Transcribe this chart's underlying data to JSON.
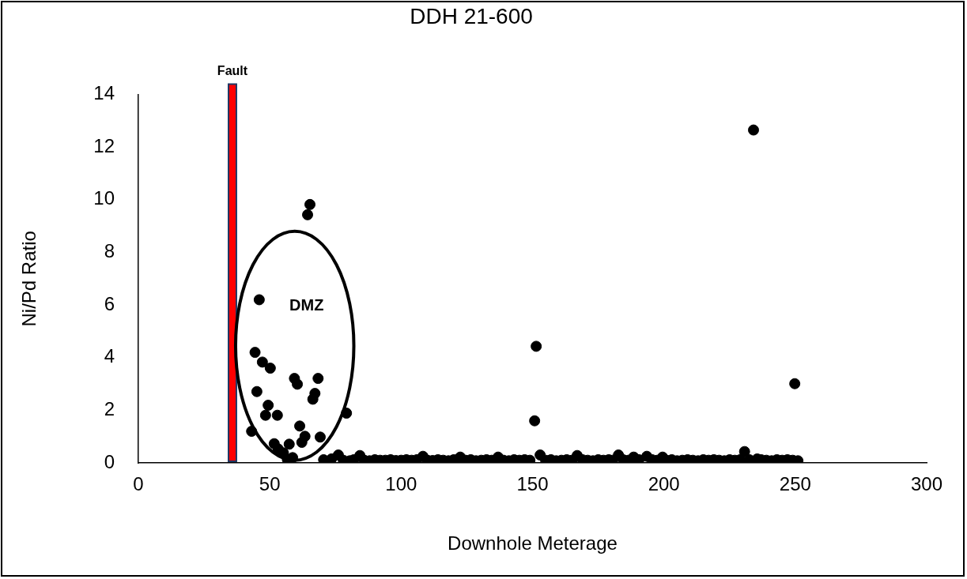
{
  "chart_data": {
    "type": "scatter",
    "title": "DDH 21-600",
    "xlabel": "Downhole Meterage",
    "ylabel": "Ni/Pd Ratio",
    "xlim": [
      0,
      300
    ],
    "xticks": [
      0,
      50,
      100,
      150,
      200,
      250,
      300
    ],
    "ylim": [
      0,
      14
    ],
    "yticks": [
      0,
      2,
      4,
      6,
      8,
      10,
      12,
      14
    ],
    "grid": false,
    "legend": false,
    "marker": "circle",
    "bands": [
      {
        "axis": "x",
        "from": 34.3,
        "to": 37.3,
        "label": "Fault",
        "color": "#ff0000"
      }
    ],
    "annotations": [
      "DMZ"
    ],
    "series": [
      {
        "color": "#000000",
        "x": [
          43.1,
          44.4,
          45.1,
          46.0,
          47.2,
          48.4,
          49.4,
          50.2,
          51.7,
          52.9,
          53.2,
          55.2,
          56.7,
          57.4,
          58.7,
          59.4,
          60.5,
          61.4,
          62.2,
          63.4,
          64.4,
          65.3,
          66.4,
          67.2,
          68.4,
          69.2,
          70.5,
          73.5,
          76.1,
          78.0,
          79.2,
          80.5,
          82.0,
          84.3,
          86.0,
          88.0,
          90.0,
          92.0,
          94.0,
          96.0,
          98.0,
          100.0,
          102.0,
          104.0,
          106.0,
          108.3,
          110.0,
          112.0,
          114.0,
          116.0,
          118.0,
          120.0,
          122.5,
          124.5,
          126.5,
          128.5,
          130.5,
          132.5,
          134.5,
          136.9,
          139.0,
          141.0,
          143.0,
          145.0,
          147.0,
          149.0,
          150.8,
          151.4,
          152.9,
          155.0,
          157.0,
          159.0,
          161.0,
          163.0,
          165.0,
          167.0,
          169.0,
          171.0,
          173.0,
          175.0,
          177.0,
          179.0,
          180.5,
          182.7,
          184.5,
          186.5,
          188.5,
          190.5,
          193.5,
          195.5,
          197.5,
          199.5,
          201.0,
          203.0,
          205.0,
          207.0,
          209.0,
          211.0,
          213.0,
          215.0,
          217.0,
          219.0,
          221.0,
          223.0,
          225.0,
          227.0,
          229.0,
          230.7,
          232.5,
          234.1,
          235.5,
          237.0,
          239.0,
          241.0,
          243.0,
          245.0,
          247.0,
          249.0,
          249.8,
          251.0
        ],
        "values": [
          1.2,
          4.2,
          2.71,
          6.2,
          3.83,
          1.81,
          2.19,
          3.6,
          0.73,
          1.81,
          0.53,
          0.38,
          0.13,
          0.71,
          0.2,
          3.21,
          2.99,
          1.4,
          0.78,
          1.01,
          9.43,
          9.82,
          2.42,
          2.64,
          3.21,
          0.98,
          0.12,
          0.15,
          0.3,
          0.1,
          1.89,
          0.08,
          0.12,
          0.28,
          0.1,
          0.08,
          0.12,
          0.1,
          0.1,
          0.12,
          0.09,
          0.1,
          0.12,
          0.1,
          0.12,
          0.25,
          0.1,
          0.09,
          0.12,
          0.1,
          0.08,
          0.12,
          0.22,
          0.1,
          0.12,
          0.08,
          0.1,
          0.12,
          0.1,
          0.22,
          0.1,
          0.08,
          0.12,
          0.1,
          0.12,
          0.1,
          1.6,
          4.43,
          0.3,
          0.1,
          0.12,
          0.08,
          0.1,
          0.12,
          0.1,
          0.28,
          0.12,
          0.1,
          0.08,
          0.12,
          0.1,
          0.12,
          0.1,
          0.3,
          0.12,
          0.1,
          0.22,
          0.12,
          0.25,
          0.12,
          0.1,
          0.22,
          0.1,
          0.12,
          0.08,
          0.1,
          0.12,
          0.1,
          0.08,
          0.12,
          0.1,
          0.12,
          0.1,
          0.08,
          0.12,
          0.1,
          0.12,
          0.43,
          0.12,
          12.65,
          0.15,
          0.12,
          0.1,
          0.08,
          0.12,
          0.1,
          0.12,
          0.1,
          3.01,
          0.08
        ]
      }
    ]
  }
}
